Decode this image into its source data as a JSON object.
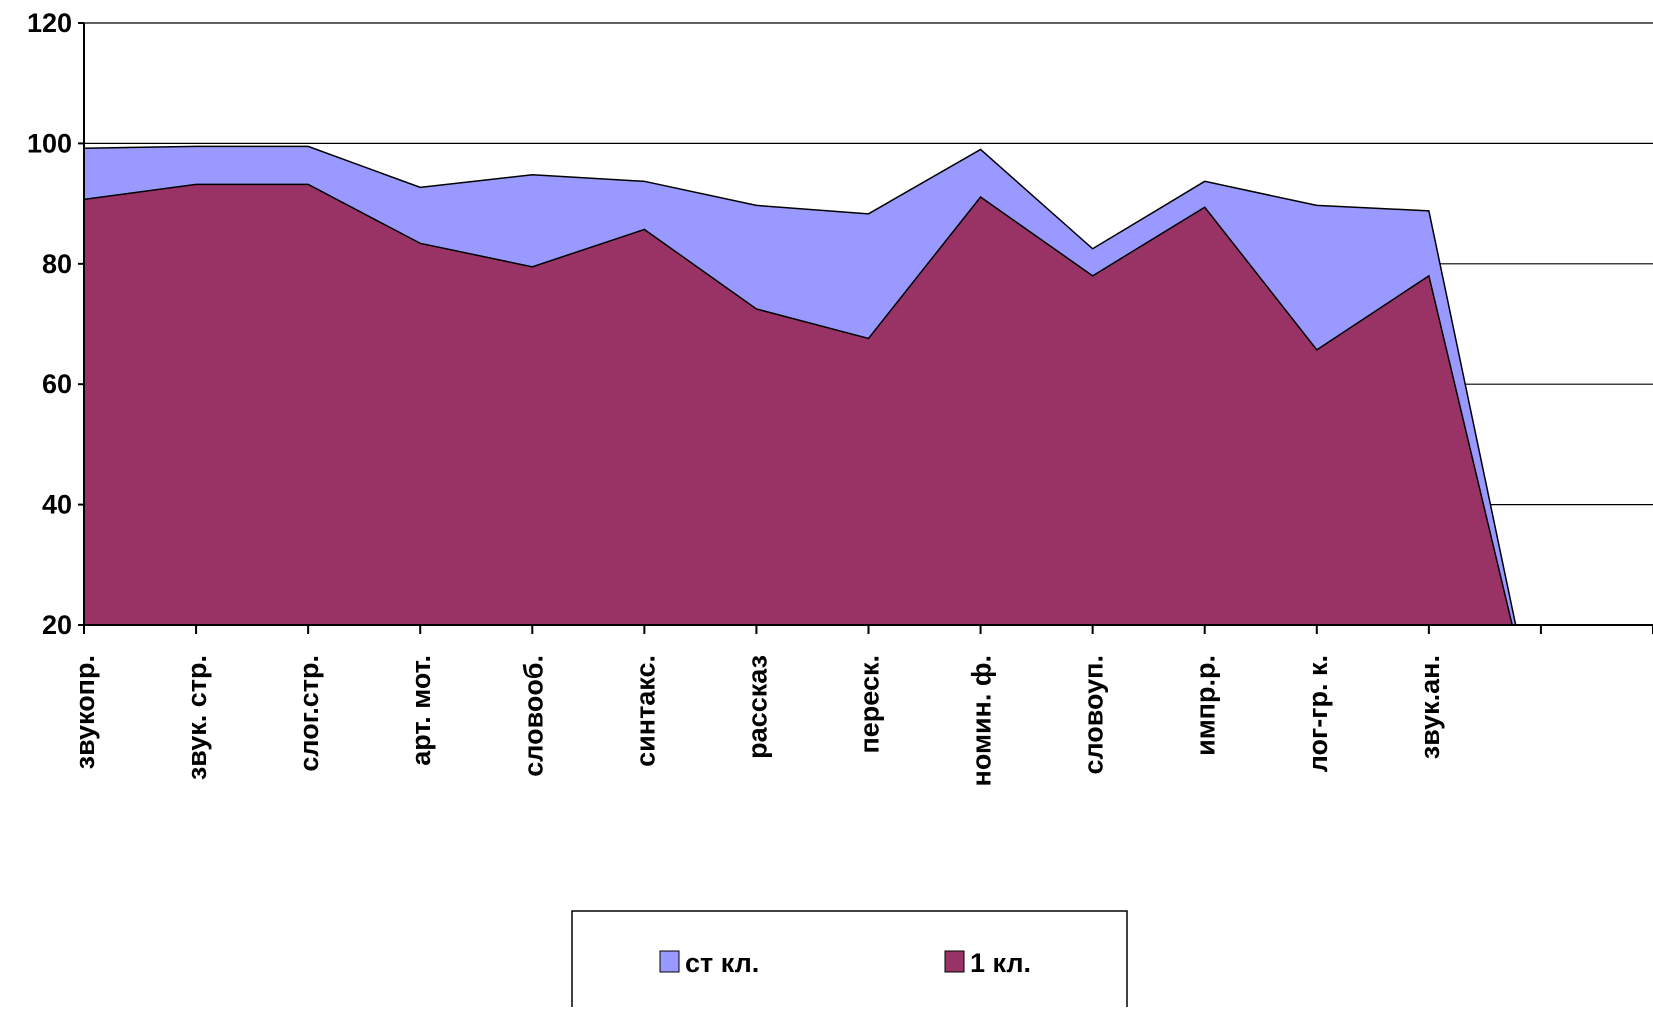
{
  "chart_data": {
    "type": "area",
    "categories": [
      "звукопр.",
      "звук. стр.",
      "слог.стр.",
      "арт. мот.",
      "словооб.",
      "синтакс.",
      "рассказ",
      "переск.",
      "номин. ф.",
      "словоуп.",
      "импр.р.",
      "лог-гр. к.",
      "звук.ан.",
      null
    ],
    "series": [
      {
        "name": "ст кл.",
        "color": "#9999ff",
        "values": [
          99.2,
          99.5,
          99.5,
          92.7,
          94.8,
          93.7,
          89.7,
          88.3,
          99,
          82.5,
          93.7,
          89.7,
          88.8,
          0
        ]
      },
      {
        "name": "1 кл.",
        "color": "#993366",
        "values": [
          90.7,
          93.2,
          93.2,
          83.4,
          79.5,
          85.7,
          72.5,
          67.6,
          91.1,
          78,
          89.4,
          65.7,
          78,
          0
        ]
      }
    ],
    "ylim": [
      20,
      120
    ],
    "yticks": [
      20,
      40,
      60,
      80,
      100,
      120
    ],
    "grid": true,
    "legend": "bottom"
  }
}
